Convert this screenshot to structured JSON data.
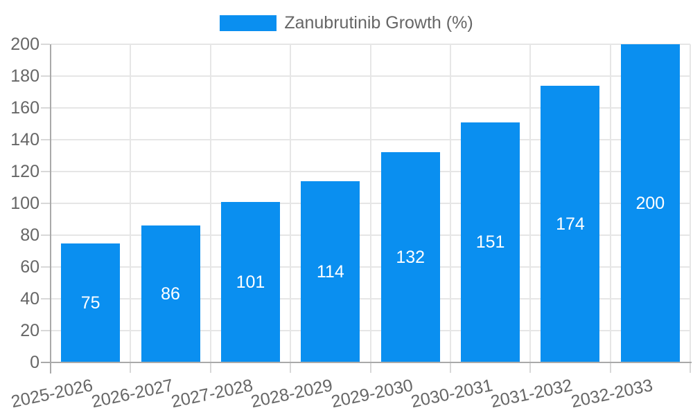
{
  "chart_data": {
    "type": "bar",
    "title": "",
    "legend_label": "Zanubrutinib Growth (%)",
    "legend_position": "top",
    "categories": [
      "2025-2026",
      "2026-2027",
      "2027-2028",
      "2028-2029",
      "2029-2030",
      "2030-2031",
      "2031-2032",
      "2032-2033"
    ],
    "values": [
      75,
      86,
      101,
      114,
      132,
      151,
      174,
      200
    ],
    "xlabel": "",
    "ylabel": "",
    "ylim": [
      0,
      200
    ],
    "y_tick_step": 20,
    "y_tick_labels": [
      "0",
      "20",
      "40",
      "60",
      "80",
      "100",
      "120",
      "140",
      "160",
      "180",
      "200"
    ],
    "grid": "on",
    "bar_value_labels_shown": true,
    "colors": {
      "bar": "#0A8FF0",
      "text": "#666666",
      "grid": "#E6E6E6",
      "axis": "#A9A9A9",
      "value_label": "#FFFFFF",
      "background": "#FFFFFF"
    }
  }
}
